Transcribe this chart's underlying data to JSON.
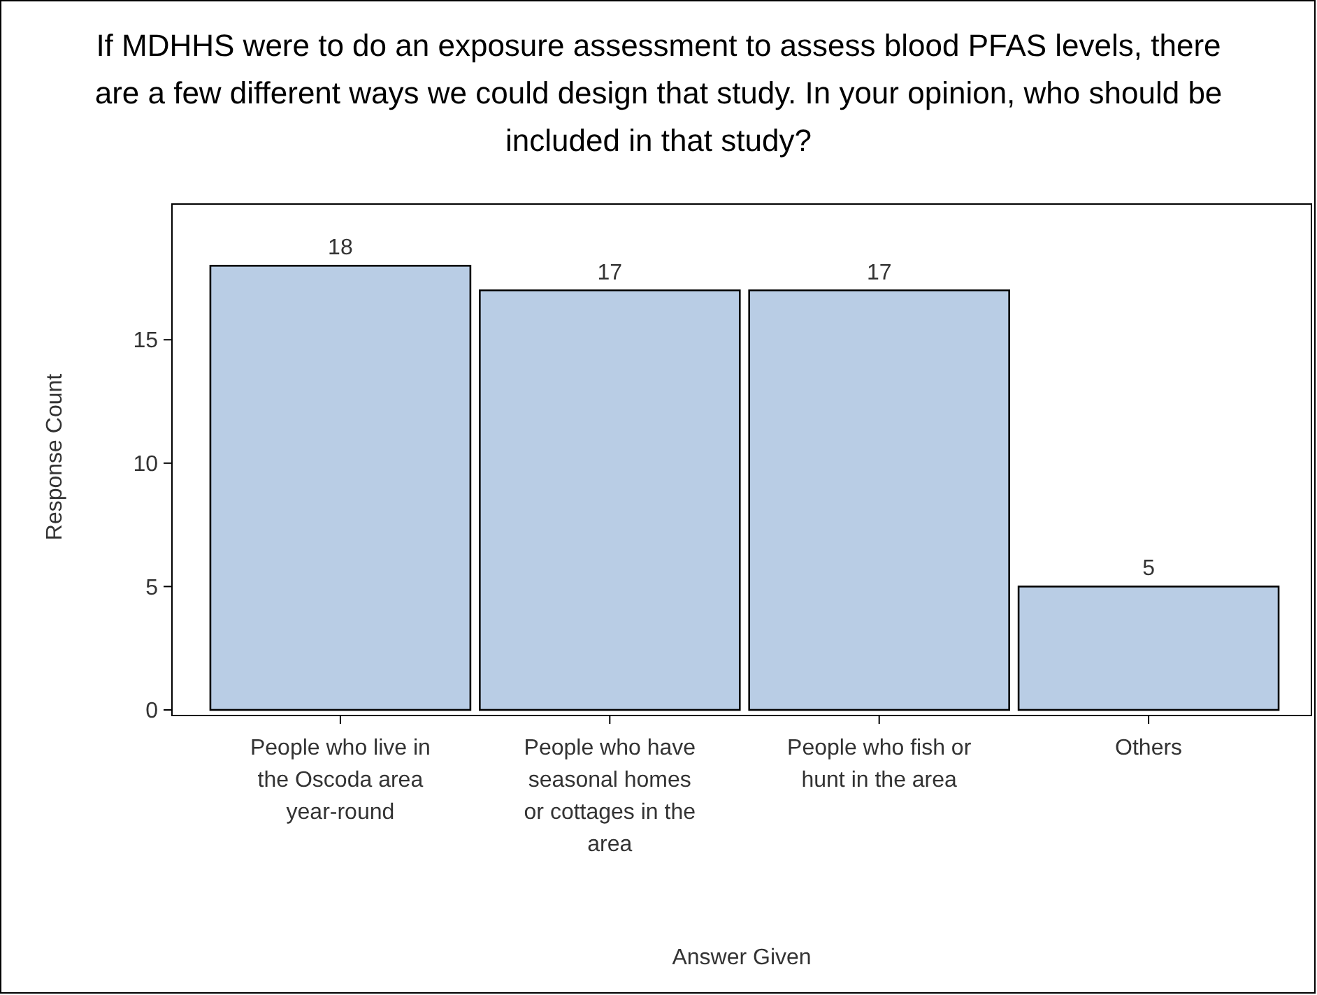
{
  "chart_data": {
    "type": "bar",
    "title": "If MDHHS were to do an exposure assessment to assess blood PFAS levels, there are a few different ways we could design that study. In your opinion, who should be included in that study?",
    "xlabel": "Answer Given",
    "ylabel": "Response Count",
    "categories": [
      "People who live in the Oscoda area year-round",
      "People who have seasonal homes or cottages in the area",
      "People who fish or hunt in the area",
      "Others"
    ],
    "values": [
      18,
      17,
      17,
      5
    ],
    "color": "#b9cde5",
    "ylim": [
      0,
      20.5
    ],
    "yticks": [
      0,
      5,
      10,
      15
    ],
    "data_labels": true
  }
}
